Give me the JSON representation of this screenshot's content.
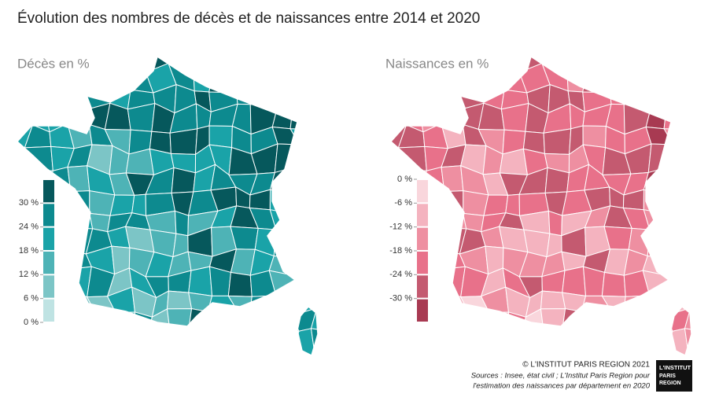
{
  "title": "Évolution des nombres de décès et de naissances entre 2014 et 2020",
  "maps": [
    {
      "title": "Décès en %",
      "legend": {
        "open_end": "top",
        "colors": [
          "#06585c",
          "#0d8a8f",
          "#1aa3a8",
          "#4eb3b6",
          "#7cc5c6",
          "#bfe3e3"
        ],
        "ticks": [
          {
            "value": 30,
            "label": "30 %"
          },
          {
            "value": 24,
            "label": "24 %"
          },
          {
            "value": 18,
            "label": "18 %"
          },
          {
            "value": 12,
            "label": "12 %"
          },
          {
            "value": 6,
            "label": "6 %"
          },
          {
            "value": 0,
            "label": "0 %"
          }
        ]
      }
    },
    {
      "title": "Naissances en %",
      "legend": {
        "open_end": "bottom",
        "colors": [
          "#f9d6dc",
          "#f4b3bf",
          "#ee8fa1",
          "#e8718a",
          "#c45a70",
          "#a83a52"
        ],
        "ticks": [
          {
            "value": 0,
            "label": "0 %"
          },
          {
            "value": -6,
            "label": "-6 %"
          },
          {
            "value": -12,
            "label": "-12 %"
          },
          {
            "value": -18,
            "label": "-18 %"
          },
          {
            "value": -24,
            "label": "-24 %"
          },
          {
            "value": -30,
            "label": "-30 %"
          }
        ]
      }
    }
  ],
  "footer": {
    "copyright": "© L'INSTITUT PARIS REGION 2021",
    "sources": [
      "Sources :  Insee, état civil ; L'Institut Paris Region pour",
      "l'estimation des naissances par département en 2020"
    ],
    "logo": [
      "L'INSTITUT",
      "PARIS",
      "REGION"
    ]
  }
}
